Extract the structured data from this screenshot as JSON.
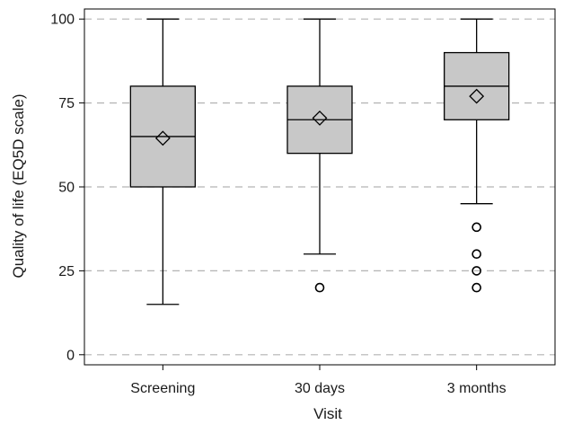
{
  "chart_data": {
    "type": "boxplot",
    "xlabel": "Visit",
    "ylabel": "Quality of life (EQ5D scale)",
    "ylim": [
      -3,
      103
    ],
    "yticks": [
      0,
      25,
      50,
      75,
      100
    ],
    "y_grid": true,
    "grid_style": "dashed",
    "colors": {
      "box_fill": "#c8c8c8",
      "stroke": "#000000",
      "grid": "#b3b3b3"
    },
    "categories": [
      "Screening",
      "30 days",
      "3 months"
    ],
    "boxes": [
      {
        "category": "Screening",
        "whisker_low": 15,
        "q1": 50,
        "median": 65,
        "q3": 80,
        "whisker_high": 100,
        "mean": 64.5,
        "outliers": []
      },
      {
        "category": "30 days",
        "whisker_low": 30,
        "q1": 60,
        "median": 70,
        "q3": 80,
        "whisker_high": 100,
        "mean": 70.5,
        "outliers": [
          20
        ]
      },
      {
        "category": "3 months",
        "whisker_low": 45,
        "q1": 70,
        "median": 80,
        "q3": 90,
        "whisker_high": 100,
        "mean": 77,
        "outliers": [
          38,
          30,
          25,
          20
        ]
      }
    ]
  }
}
